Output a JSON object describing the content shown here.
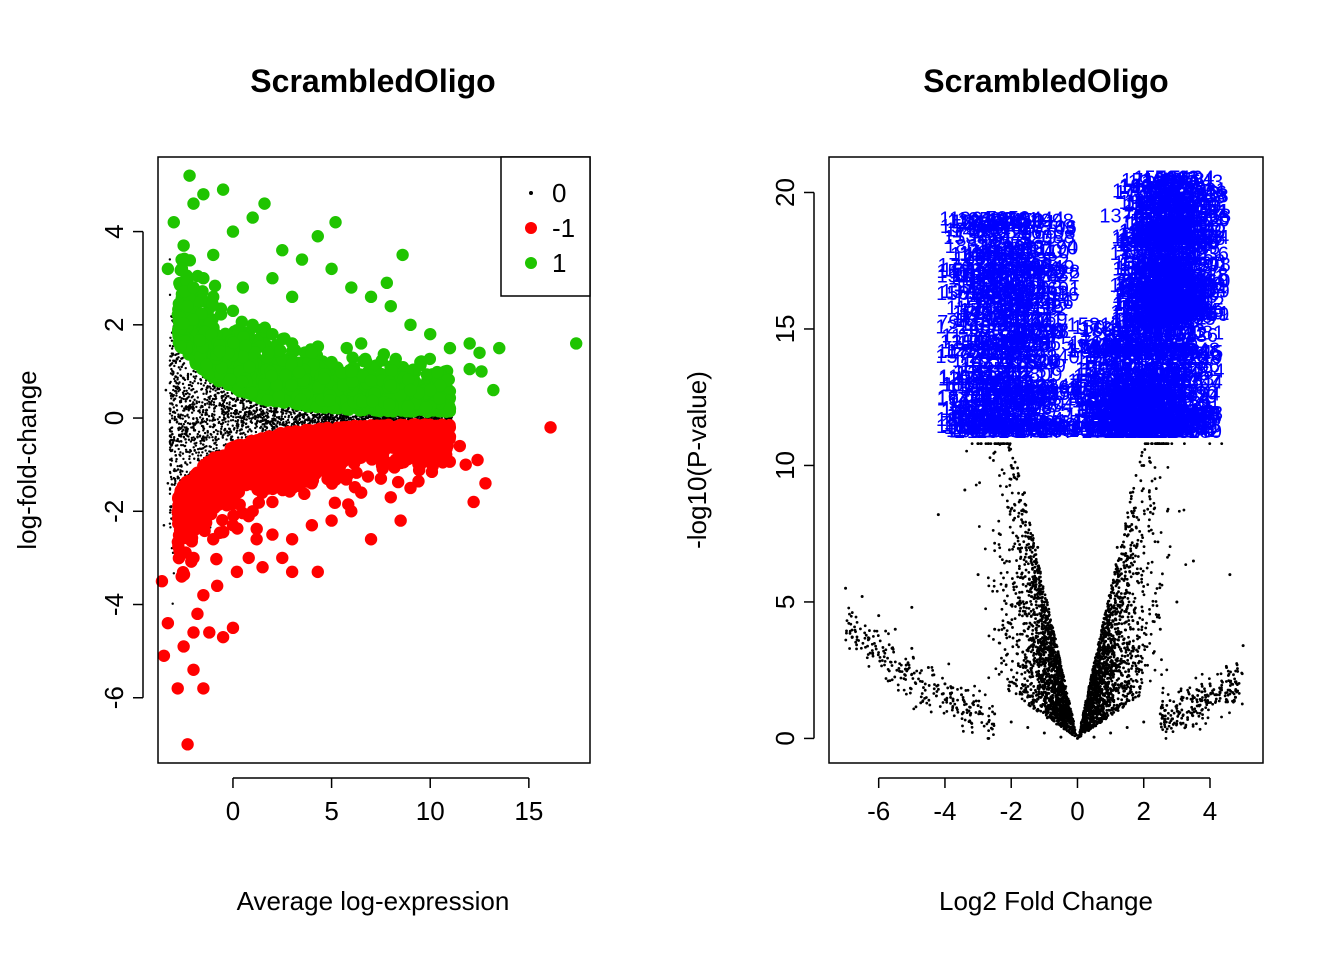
{
  "chart_data": [
    {
      "type": "scatter",
      "title": "ScrambledOligo",
      "xlabel": "Average log-expression",
      "ylabel": "log-fold-change",
      "xlim": [
        -3.8,
        18.1
      ],
      "ylim": [
        -7.4,
        5.6
      ],
      "xticks": [
        0,
        5,
        10,
        15
      ],
      "xtick_labels": [
        "0",
        "5",
        "10",
        "15"
      ],
      "yticks": [
        -6,
        -4,
        -2,
        0,
        2,
        4
      ],
      "ytick_labels": [
        "-6",
        "-4",
        "-2",
        "0",
        "2",
        "4"
      ],
      "grid": false,
      "legend": {
        "position": "top-right",
        "entries": [
          {
            "label": "0",
            "color": "#000000",
            "marker": "small-dot"
          },
          {
            "label": "-1",
            "color": "#ff0000",
            "marker": "dot"
          },
          {
            "label": "1",
            "color": "#1fc400",
            "marker": "dot"
          }
        ]
      },
      "series": [
        {
          "status": "0",
          "color": "#000000",
          "marker": "small-dot",
          "points": [
            [
              -3.2,
              0.2
            ],
            [
              -2.9,
              -0.8
            ],
            [
              -2.6,
              1.1
            ],
            [
              -2.4,
              -1.5
            ],
            [
              -2.1,
              0.6
            ],
            [
              -1.8,
              -0.4
            ],
            [
              -1.6,
              1.8
            ],
            [
              -1.3,
              -1.2
            ],
            [
              -1.0,
              0.9
            ],
            [
              -0.7,
              -0.7
            ],
            [
              -0.4,
              1.4
            ],
            [
              -0.1,
              -0.3
            ],
            [
              0.3,
              0.8
            ],
            [
              0.7,
              -0.9
            ],
            [
              1.1,
              0.5
            ],
            [
              1.6,
              -0.5
            ],
            [
              2.1,
              0.6
            ],
            [
              2.6,
              -0.4
            ],
            [
              3.2,
              0.4
            ],
            [
              3.8,
              -0.3
            ],
            [
              4.5,
              0.3
            ],
            [
              5.2,
              -0.2
            ],
            [
              6.0,
              0.25
            ],
            [
              6.8,
              -0.2
            ],
            [
              7.6,
              0.15
            ],
            [
              8.5,
              -0.1
            ],
            [
              9.4,
              0.1
            ],
            [
              10.3,
              -0.05
            ],
            [
              -3.5,
              -2.3
            ],
            [
              -3.4,
              0.6
            ],
            [
              -3.3,
              -1.4
            ],
            [
              -2.2,
              2.6
            ],
            [
              -1.9,
              -2.2
            ],
            [
              -0.8,
              2.1
            ],
            [
              0.2,
              -1.6
            ],
            [
              1.0,
              1.5
            ]
          ]
        },
        {
          "status": "-1",
          "color": "#ff0000",
          "marker": "dot",
          "points": [
            [
              -2.3,
              -7.0
            ],
            [
              -2.8,
              -5.8
            ],
            [
              -3.5,
              -5.1
            ],
            [
              -3.3,
              -4.4
            ],
            [
              -3.6,
              -3.5
            ],
            [
              -2.5,
              -4.9
            ],
            [
              -2.0,
              -5.4
            ],
            [
              -1.5,
              -5.8
            ],
            [
              -1.2,
              -4.6
            ],
            [
              -0.5,
              -4.7
            ],
            [
              0.0,
              -4.5
            ],
            [
              -1.8,
              -4.2
            ],
            [
              -0.8,
              -3.6
            ],
            [
              0.2,
              -3.3
            ],
            [
              0.8,
              -3.0
            ],
            [
              1.2,
              -2.6
            ],
            [
              2.0,
              -2.5
            ],
            [
              3.0,
              -2.6
            ],
            [
              3.0,
              -3.3
            ],
            [
              4.3,
              -3.3
            ],
            [
              4.0,
              -2.3
            ],
            [
              5.0,
              -2.2
            ],
            [
              6.0,
              -2.0
            ],
            [
              7.0,
              -2.6
            ],
            [
              6.5,
              -1.6
            ],
            [
              7.5,
              -1.3
            ],
            [
              8.5,
              -2.2
            ],
            [
              9.0,
              -1.5
            ],
            [
              9.5,
              -1.0
            ],
            [
              10.0,
              -0.8
            ],
            [
              10.5,
              -0.6
            ],
            [
              11.0,
              -0.4
            ],
            [
              11.5,
              -0.6
            ],
            [
              11.8,
              -1.0
            ],
            [
              12.2,
              -1.8
            ],
            [
              12.8,
              -1.4
            ],
            [
              12.4,
              -0.9
            ],
            [
              16.1,
              -0.2
            ],
            [
              5.0,
              -1.2
            ],
            [
              4.0,
              -1.4
            ],
            [
              3.0,
              -1.5
            ],
            [
              2.0,
              -1.8
            ],
            [
              1.0,
              -2.0
            ],
            [
              0.0,
              -2.3
            ],
            [
              -1.0,
              -2.6
            ],
            [
              -2.0,
              -3.0
            ],
            [
              -2.6,
              -3.4
            ],
            [
              6.0,
              -0.8
            ],
            [
              7.0,
              -0.7
            ],
            [
              8.0,
              -0.5
            ],
            [
              9.0,
              -0.4
            ],
            [
              8.0,
              -1.7
            ],
            [
              2.5,
              -3.0
            ],
            [
              1.5,
              -3.2
            ],
            [
              -1.5,
              -3.8
            ],
            [
              -2.0,
              -4.6
            ]
          ]
        },
        {
          "status": "1",
          "color": "#1fc400",
          "marker": "dot",
          "points": [
            [
              -2.2,
              5.2
            ],
            [
              -1.5,
              4.8
            ],
            [
              -0.5,
              4.9
            ],
            [
              -2.0,
              4.6
            ],
            [
              -3.0,
              4.2
            ],
            [
              -3.3,
              3.2
            ],
            [
              -2.5,
              3.7
            ],
            [
              -1.0,
              3.5
            ],
            [
              0.0,
              4.0
            ],
            [
              1.0,
              4.3
            ],
            [
              1.6,
              4.6
            ],
            [
              2.5,
              3.6
            ],
            [
              3.5,
              3.4
            ],
            [
              4.3,
              3.9
            ],
            [
              5.2,
              4.2
            ],
            [
              5.0,
              3.2
            ],
            [
              6.0,
              2.8
            ],
            [
              7.0,
              2.6
            ],
            [
              7.8,
              2.9
            ],
            [
              8.6,
              3.5
            ],
            [
              8.0,
              2.4
            ],
            [
              9.0,
              2.0
            ],
            [
              10.0,
              1.8
            ],
            [
              11.0,
              1.5
            ],
            [
              12.0,
              1.6
            ],
            [
              12.5,
              1.4
            ],
            [
              13.5,
              1.5
            ],
            [
              13.2,
              0.6
            ],
            [
              12.6,
              1.0
            ],
            [
              12.0,
              1.05
            ],
            [
              17.4,
              1.6
            ],
            [
              10.5,
              0.7
            ],
            [
              11.0,
              0.2
            ],
            [
              10.0,
              0.6
            ],
            [
              9.0,
              0.6
            ],
            [
              8.0,
              0.7
            ],
            [
              7.0,
              0.8
            ],
            [
              6.0,
              1.0
            ],
            [
              5.0,
              1.2
            ],
            [
              4.0,
              1.4
            ],
            [
              3.0,
              1.6
            ],
            [
              2.0,
              1.8
            ],
            [
              1.0,
              2.0
            ],
            [
              0.0,
              2.3
            ],
            [
              -1.0,
              2.6
            ],
            [
              -2.0,
              2.8
            ],
            [
              -2.3,
              2.4
            ],
            [
              9.5,
              1.2
            ],
            [
              6.5,
              1.6
            ],
            [
              3.0,
              2.6
            ],
            [
              -1.5,
              3.0
            ],
            [
              0.5,
              2.8
            ],
            [
              2.0,
              3.0
            ]
          ]
        }
      ]
    },
    {
      "type": "scatter",
      "title": "ScrambledOligo",
      "xlabel": "Log2 Fold Change",
      "ylabel": "-log10(P-value)",
      "xlim": [
        -7.5,
        5.6
      ],
      "ylim": [
        -0.9,
        21.3
      ],
      "xticks": [
        -6,
        -4,
        -2,
        0,
        2,
        4
      ],
      "xtick_labels": [
        "-6",
        "-4",
        "-2",
        "0",
        "2",
        "4"
      ],
      "yticks": [
        0,
        5,
        10,
        15,
        20
      ],
      "ytick_labels": [
        "0",
        "5",
        "10",
        "15",
        "20"
      ],
      "grid": false,
      "label_color": "#0000ff",
      "series": [
        {
          "name": "",
          "color": "#000000",
          "marker": "small-dot",
          "points": [
            [
              -7.0,
              5.5
            ],
            [
              -6.5,
              5.2
            ],
            [
              -6.0,
              4.5
            ],
            [
              -5.5,
              4.0
            ],
            [
              -5.0,
              3.3
            ],
            [
              -4.5,
              2.6
            ],
            [
              -4.0,
              2.0
            ],
            [
              -3.5,
              1.6
            ],
            [
              -3.0,
              1.2
            ],
            [
              -2.5,
              0.9
            ],
            [
              -2.0,
              0.6
            ],
            [
              -1.5,
              0.4
            ],
            [
              -1.0,
              0.2
            ],
            [
              -0.5,
              0.05
            ],
            [
              0.0,
              0.0
            ],
            [
              0.5,
              0.05
            ],
            [
              1.0,
              0.2
            ],
            [
              1.5,
              0.4
            ],
            [
              2.0,
              0.6
            ],
            [
              2.5,
              0.9
            ],
            [
              3.0,
              1.2
            ],
            [
              3.5,
              1.5
            ],
            [
              4.0,
              2.0
            ],
            [
              4.5,
              2.6
            ],
            [
              5.0,
              3.4
            ],
            [
              -4.2,
              8.2
            ],
            [
              -3.4,
              9.1
            ],
            [
              -5.0,
              4.8
            ],
            [
              4.6,
              6.0
            ],
            [
              3.5,
              6.5
            ],
            [
              -2.0,
              10.0
            ],
            [
              -1.6,
              9.0
            ],
            [
              -1.2,
              7.0
            ],
            [
              -0.8,
              4.0
            ],
            [
              0.8,
              4.0
            ],
            [
              1.2,
              7.0
            ],
            [
              1.6,
              9.0
            ],
            [
              2.0,
              10.0
            ],
            [
              -3.0,
              6.0
            ],
            [
              3.0,
              5.0
            ],
            [
              -2.5,
              4.0
            ],
            [
              2.5,
              4.0
            ]
          ]
        }
      ],
      "labels": [
        {
          "text": "5613",
          "x": 3.0,
          "y": 20.3
        },
        {
          "text": "13768",
          "x": 1.5,
          "y": 18.9
        },
        {
          "text": "7950",
          "x": -2.1,
          "y": 18.8
        },
        {
          "text": "7084",
          "x": 2.5,
          "y": 17.5
        },
        {
          "text": "6236",
          "x": 3.9,
          "y": 17.5
        },
        {
          "text": "37",
          "x": 1.5,
          "y": 16.4
        },
        {
          "text": "79",
          "x": -3.9,
          "y": 15.0
        },
        {
          "text": "74",
          "x": -3.5,
          "y": 11.7
        }
      ],
      "label_clusters": [
        {
          "x_range": [
            -3.5,
            -0.7
          ],
          "y_range": [
            11.0,
            18.8
          ]
        },
        {
          "x_range": [
            0.4,
            3.6
          ],
          "y_range": [
            11.0,
            15.0
          ]
        },
        {
          "x_range": [
            1.8,
            3.8
          ],
          "y_range": [
            15.0,
            20.3
          ]
        }
      ]
    }
  ]
}
